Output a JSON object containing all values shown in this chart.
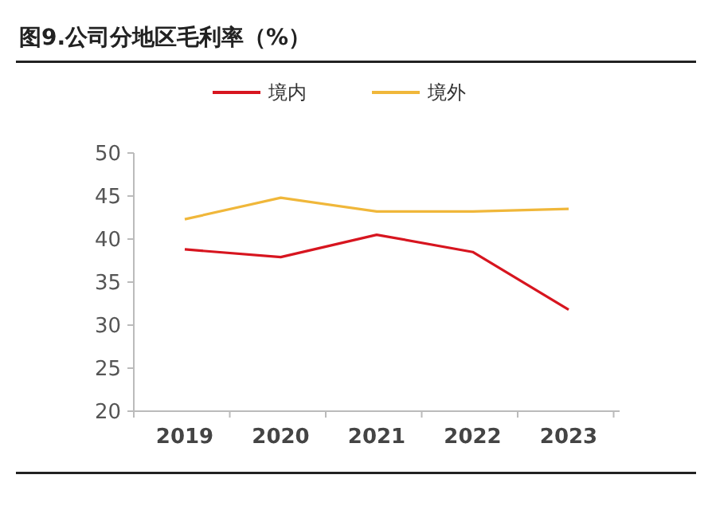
{
  "chart_data": {
    "type": "line",
    "title": "图9.公司分地区毛利率（%）",
    "categories": [
      "2019",
      "2020",
      "2021",
      "2022",
      "2023"
    ],
    "series": [
      {
        "name": "境内",
        "color": "#d7151f",
        "values": [
          38.8,
          37.9,
          40.5,
          38.5,
          31.8
        ]
      },
      {
        "name": "境外",
        "color": "#f0b73a",
        "values": [
          42.3,
          44.8,
          43.2,
          43.2,
          43.5
        ]
      }
    ],
    "ylim": [
      20,
      50
    ],
    "yticks": [
      20,
      25,
      30,
      35,
      40,
      45,
      50
    ],
    "grid": false,
    "legend": "top",
    "marker": "none",
    "line_style": "solid"
  }
}
